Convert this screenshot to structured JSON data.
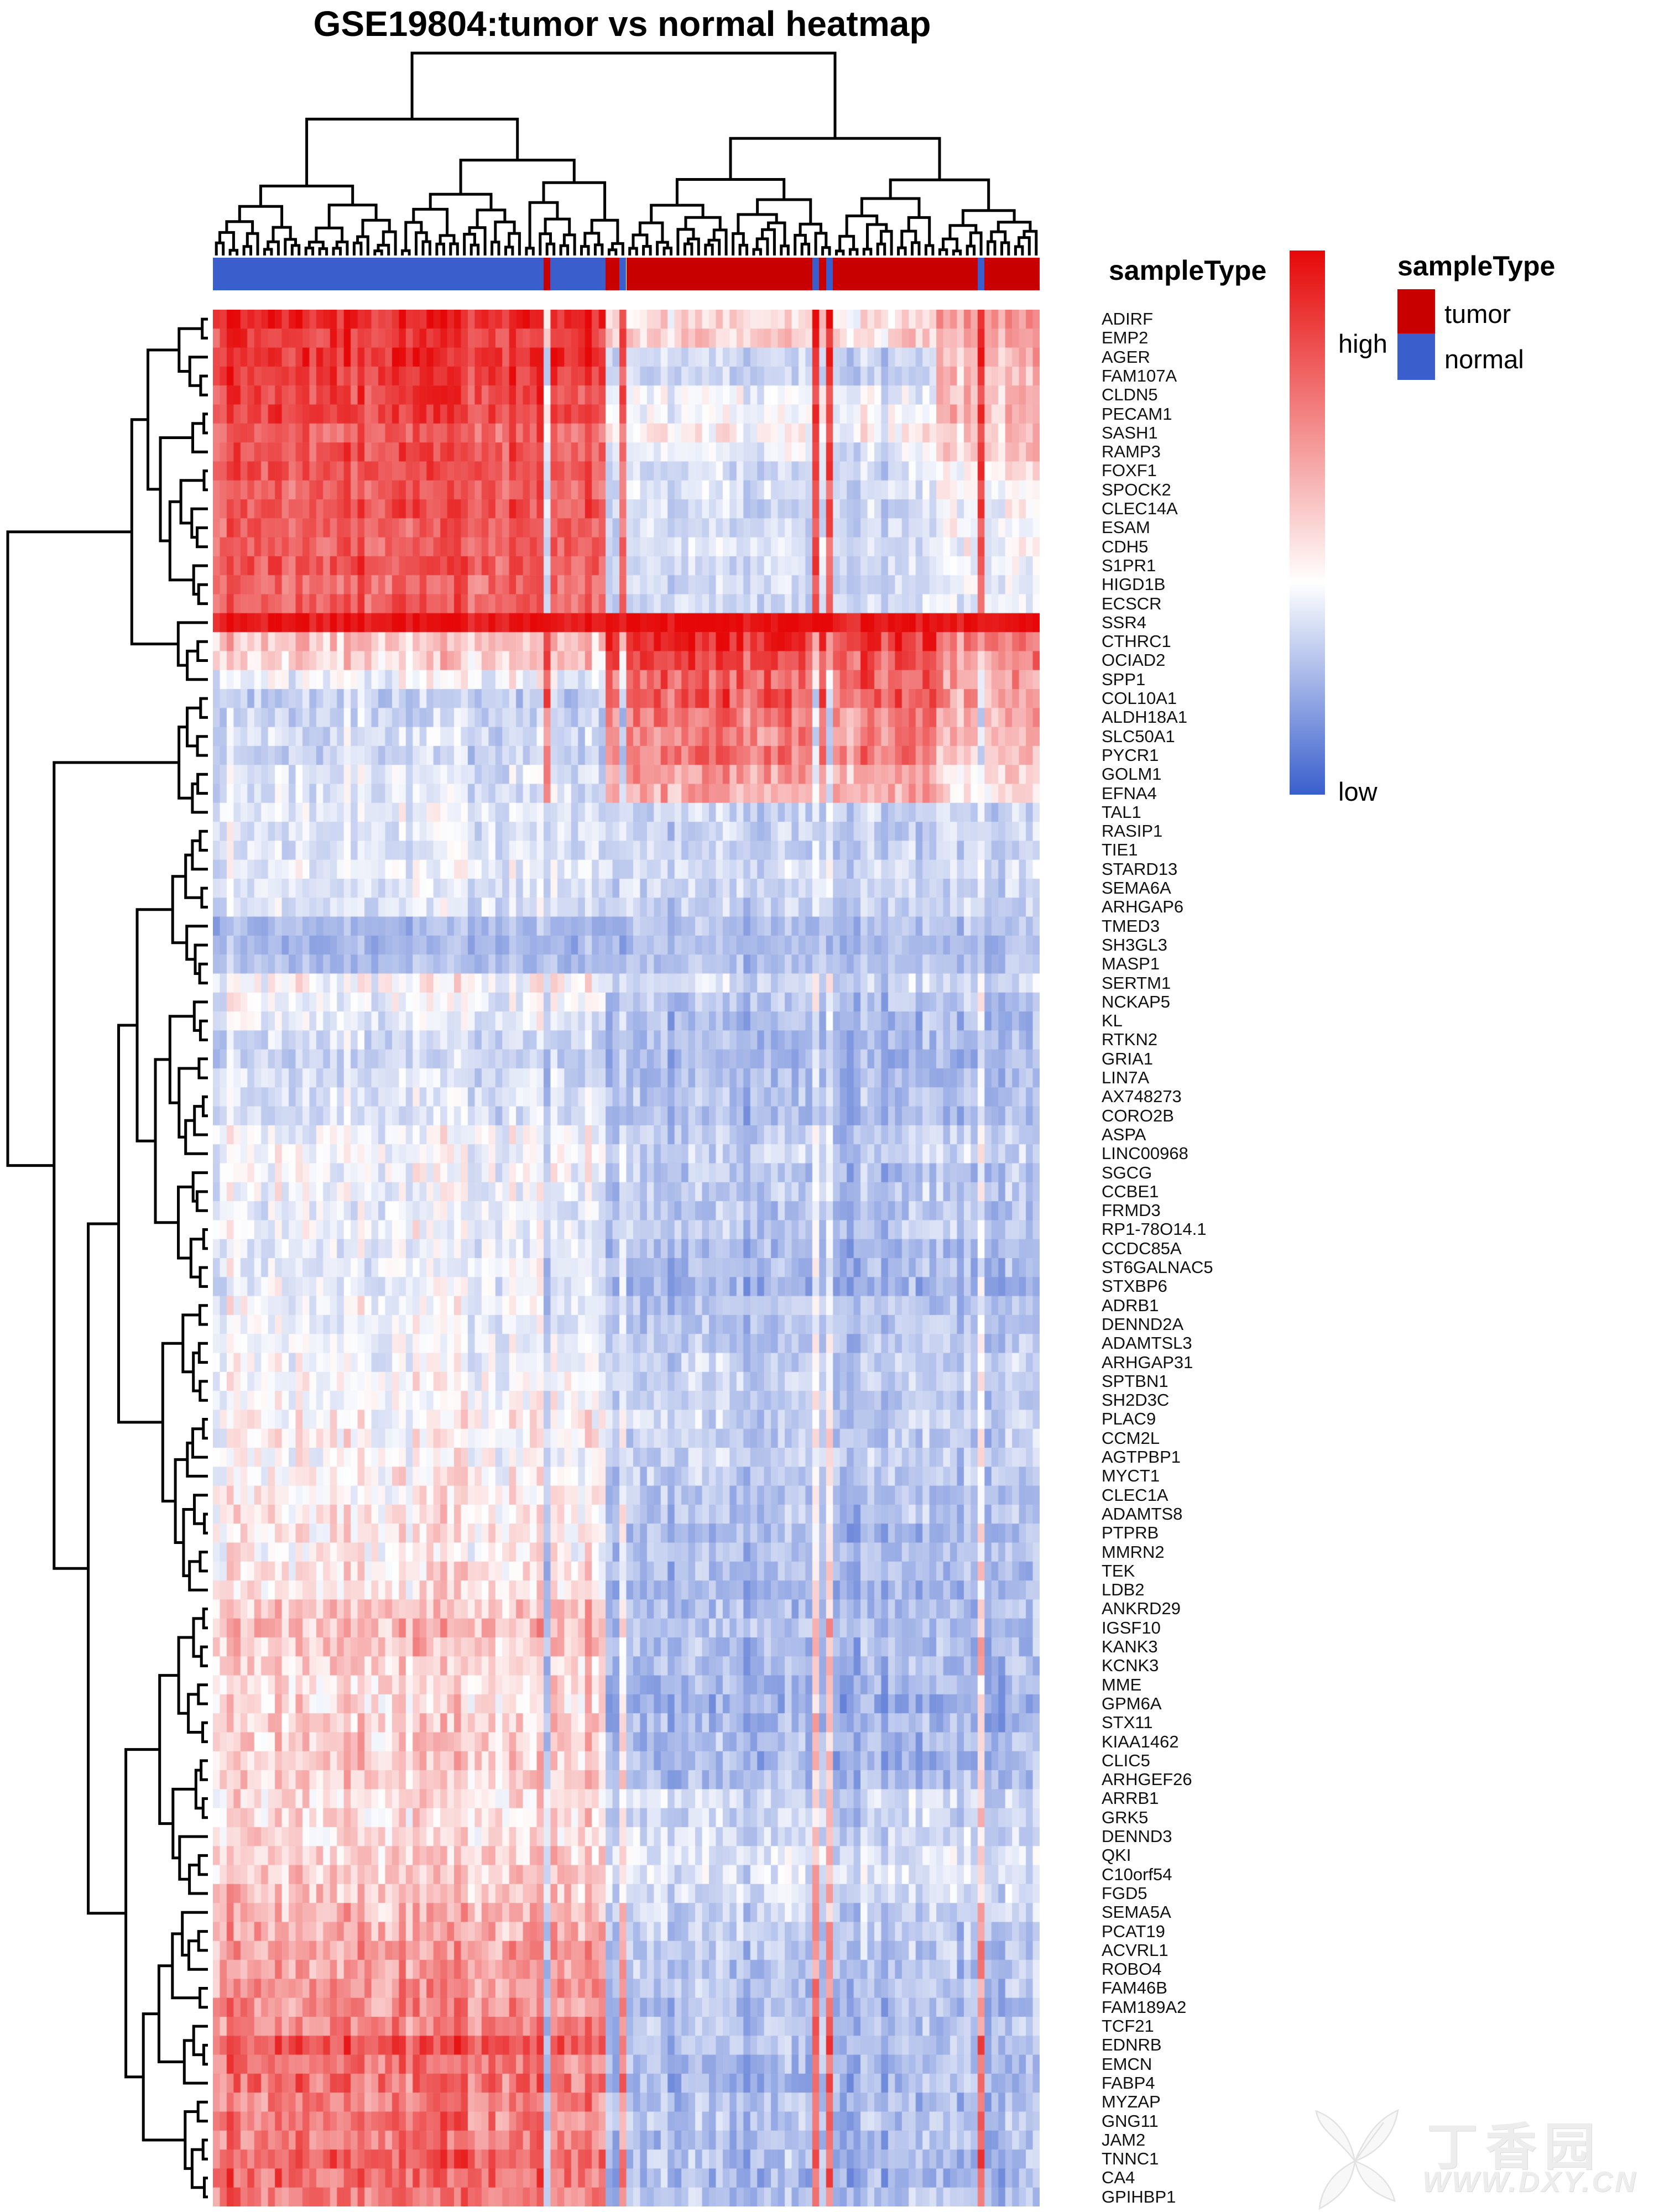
{
  "title": "GSE19804:tumor vs normal heatmap",
  "annotation_row_label": "sampleType",
  "legend": {
    "gradient_high_label": "high",
    "gradient_low_label": "low",
    "sample_type_title": "sampleType",
    "tumor_label": "tumor",
    "normal_label": "normal",
    "tumor_color": "#C80000",
    "normal_color": "#3A5FCD"
  },
  "watermark": {
    "cn": "丁香园",
    "url": "WWW.DXY.CN"
  },
  "chart_data": {
    "type": "heatmap",
    "title": "GSE19804:tumor vs normal heatmap",
    "n_samples": 120,
    "n_genes": 100,
    "grid": false,
    "colormap": {
      "low": "#3A5FCD",
      "mid": "#FFFFFF",
      "high": "#E60808",
      "vmin": -2,
      "vmax": 2
    },
    "column_annotation": {
      "name": "sampleType",
      "classes": {
        "tumor": "#C80000",
        "normal": "#3A5FCD"
      },
      "segments": [
        {
          "from": 0,
          "to": 47,
          "type": "normal"
        },
        {
          "from": 48,
          "to": 48,
          "type": "tumor"
        },
        {
          "from": 49,
          "to": 56,
          "type": "normal"
        },
        {
          "from": 57,
          "to": 58,
          "type": "tumor"
        },
        {
          "from": 59,
          "to": 59,
          "type": "normal"
        },
        {
          "from": 60,
          "to": 86,
          "type": "tumor"
        },
        {
          "from": 87,
          "to": 87,
          "type": "normal"
        },
        {
          "from": 88,
          "to": 88,
          "type": "tumor"
        },
        {
          "from": 89,
          "to": 89,
          "type": "normal"
        },
        {
          "from": 90,
          "to": 110,
          "type": "tumor"
        },
        {
          "from": 111,
          "to": 111,
          "type": "normal"
        },
        {
          "from": 112,
          "to": 119,
          "type": "tumor"
        }
      ]
    },
    "column_clusters": {
      "normal_cluster": [
        0,
        59
      ],
      "tumor_main": [
        60,
        104
      ],
      "tumor_right": [
        105,
        119
      ]
    },
    "profiles_note": "per gene: [gene, mean z-score in normal samples, mean z-score in tumor samples, mean in right tumor subcluster (null = same as tumor), noise amplitude]",
    "rows": [
      [
        "ADIRF",
        1.8,
        0.2,
        0.8,
        0.3
      ],
      [
        "EMP2",
        1.6,
        0.3,
        0.7,
        0.3
      ],
      [
        "AGER",
        1.7,
        -0.6,
        0.6,
        0.3
      ],
      [
        "FAM107A",
        1.6,
        -0.6,
        0.5,
        0.3
      ],
      [
        "CLDN5",
        1.5,
        -0.2,
        0.5,
        0.3
      ],
      [
        "PECAM1",
        1.5,
        -0.1,
        0.5,
        0.3
      ],
      [
        "SASH1",
        1.3,
        0.0,
        0.4,
        0.28
      ],
      [
        "RAMP3",
        1.4,
        -0.3,
        0.4,
        0.3
      ],
      [
        "FOXF1",
        1.4,
        -0.5,
        0.0,
        0.3
      ],
      [
        "SPOCK2",
        1.3,
        -0.4,
        0.0,
        0.28
      ],
      [
        "CLEC14A",
        1.4,
        -0.5,
        -0.1,
        0.3
      ],
      [
        "ESAM",
        1.3,
        -0.5,
        -0.1,
        0.28
      ],
      [
        "CDH5",
        1.3,
        -0.4,
        -0.1,
        0.28
      ],
      [
        "S1PR1",
        1.4,
        -0.5,
        -0.2,
        0.3
      ],
      [
        "HIGD1B",
        1.2,
        -0.5,
        -0.2,
        0.28
      ],
      [
        "ECSCR",
        1.3,
        -0.5,
        -0.2,
        0.28
      ],
      [
        "SSR4",
        1.9,
        1.9,
        1.9,
        0.12
      ],
      [
        "CTHRC1",
        0.5,
        1.6,
        1.0,
        0.35
      ],
      [
        "OCIAD2",
        0.4,
        1.4,
        0.9,
        0.35
      ],
      [
        "SPP1",
        -0.1,
        1.2,
        0.7,
        0.4
      ],
      [
        "COL10A1",
        -0.6,
        1.3,
        0.8,
        0.4
      ],
      [
        "ALDH18A1",
        -0.5,
        1.0,
        0.5,
        0.35
      ],
      [
        "SLC50A1",
        -0.4,
        0.9,
        0.5,
        0.35
      ],
      [
        "PYCR1",
        -0.5,
        1.0,
        0.4,
        0.35
      ],
      [
        "GOLM1",
        -0.3,
        0.7,
        0.3,
        0.35
      ],
      [
        "EFNA4",
        -0.3,
        0.6,
        0.2,
        0.35
      ],
      [
        "TAL1",
        -0.2,
        -0.6,
        null,
        0.35
      ],
      [
        "RASIP1",
        -0.3,
        -0.6,
        null,
        0.35
      ],
      [
        "TIE1",
        -0.3,
        -0.6,
        null,
        0.32
      ],
      [
        "STARD13",
        -0.2,
        -0.5,
        null,
        0.32
      ],
      [
        "SEMA6A",
        -0.3,
        -0.6,
        null,
        0.32
      ],
      [
        "ARHGAP6",
        -0.3,
        -0.6,
        null,
        0.32
      ],
      [
        "TMED3",
        -0.85,
        -0.8,
        null,
        0.25
      ],
      [
        "SH3GL3",
        -0.9,
        -0.85,
        null,
        0.25
      ],
      [
        "MASP1",
        -0.8,
        -0.8,
        null,
        0.25
      ],
      [
        "SERTM1",
        0.0,
        -0.5,
        null,
        0.38
      ],
      [
        "NCKAP5",
        -0.1,
        -0.8,
        null,
        0.35
      ],
      [
        "KL",
        -0.2,
        -0.9,
        null,
        0.35
      ],
      [
        "RTKN2",
        -0.4,
        -0.9,
        null,
        0.32
      ],
      [
        "GRIA1",
        -0.5,
        -1.0,
        null,
        0.32
      ],
      [
        "LIN7A",
        -0.4,
        -0.9,
        null,
        0.32
      ],
      [
        "AX748273",
        -0.3,
        -0.8,
        null,
        0.32
      ],
      [
        "CORO2B",
        -0.4,
        -0.9,
        null,
        0.32
      ],
      [
        "ASPA",
        -0.1,
        -0.7,
        null,
        0.35
      ],
      [
        "LINC00968",
        0.0,
        -0.6,
        null,
        0.38
      ],
      [
        "SGCG",
        -0.1,
        -0.8,
        null,
        0.38
      ],
      [
        "CCBE1",
        -0.1,
        -0.7,
        null,
        0.38
      ],
      [
        "FRMD3",
        -0.2,
        -0.8,
        null,
        0.35
      ],
      [
        "RP1-78O14.1",
        -0.1,
        -0.7,
        null,
        0.35
      ],
      [
        "CCDC85A",
        -0.2,
        -0.9,
        null,
        0.35
      ],
      [
        "ST6GALNAC5",
        -0.2,
        -0.9,
        null,
        0.35
      ],
      [
        "STXBP6",
        -0.2,
        -1.0,
        null,
        0.35
      ],
      [
        "ADRB1",
        -0.1,
        -0.8,
        null,
        0.35
      ],
      [
        "DENND2A",
        -0.2,
        -0.8,
        null,
        0.33
      ],
      [
        "ADAMTSL3",
        -0.1,
        -0.7,
        null,
        0.33
      ],
      [
        "ARHGAP31",
        -0.1,
        -0.6,
        null,
        0.33
      ],
      [
        "SPTBN1",
        0.0,
        -0.6,
        null,
        0.33
      ],
      [
        "SH2D3C",
        0.0,
        -0.7,
        null,
        0.33
      ],
      [
        "PLAC9",
        0.1,
        -0.6,
        null,
        0.38
      ],
      [
        "CCM2L",
        0.1,
        -0.7,
        null,
        0.38
      ],
      [
        "AGTPBP1",
        0.0,
        -0.6,
        null,
        0.35
      ],
      [
        "MYCT1",
        0.1,
        -0.7,
        null,
        0.35
      ],
      [
        "CLEC1A",
        0.1,
        -0.8,
        null,
        0.35
      ],
      [
        "ADAMTS8",
        0.2,
        -0.8,
        null,
        0.35
      ],
      [
        "PTPRB",
        0.2,
        -0.9,
        null,
        0.35
      ],
      [
        "MMRN2",
        0.1,
        -0.8,
        null,
        0.35
      ],
      [
        "TEK",
        0.2,
        -0.9,
        null,
        0.35
      ],
      [
        "LDB2",
        0.2,
        -0.9,
        null,
        0.35
      ],
      [
        "ANKRD29",
        0.5,
        -0.9,
        null,
        0.38
      ],
      [
        "IGSF10",
        0.6,
        -0.8,
        null,
        0.4
      ],
      [
        "KANK3",
        0.5,
        -0.9,
        null,
        0.38
      ],
      [
        "KCNK3",
        0.4,
        -0.9,
        null,
        0.38
      ],
      [
        "MME",
        0.3,
        -1.0,
        null,
        0.38
      ],
      [
        "GPM6A",
        0.3,
        -1.1,
        null,
        0.38
      ],
      [
        "STX11",
        0.4,
        -1.0,
        null,
        0.38
      ],
      [
        "KIAA1462",
        0.4,
        -0.9,
        null,
        0.38
      ],
      [
        "CLIC5",
        0.4,
        -1.0,
        null,
        0.38
      ],
      [
        "ARHGEF26",
        0.4,
        -0.9,
        null,
        0.38
      ],
      [
        "ARRB1",
        0.3,
        -0.5,
        null,
        0.38
      ],
      [
        "GRK5",
        0.3,
        -0.6,
        null,
        0.38
      ],
      [
        "DENND3",
        0.3,
        -0.5,
        null,
        0.38
      ],
      [
        "QKI",
        0.4,
        -0.4,
        null,
        0.38
      ],
      [
        "C10orf54",
        0.5,
        -0.4,
        null,
        0.38
      ],
      [
        "FGD5",
        0.5,
        -0.5,
        null,
        0.38
      ],
      [
        "SEMA5A",
        0.6,
        -0.6,
        null,
        0.38
      ],
      [
        "PCAT19",
        0.7,
        -0.7,
        null,
        0.4
      ],
      [
        "ACVRL1",
        0.8,
        -0.7,
        null,
        0.38
      ],
      [
        "ROBO4",
        0.8,
        -0.8,
        null,
        0.38
      ],
      [
        "FAM46B",
        0.9,
        -0.8,
        null,
        0.38
      ],
      [
        "FAM189A2",
        0.9,
        -0.9,
        null,
        0.38
      ],
      [
        "TCF21",
        1.0,
        -0.8,
        null,
        0.4
      ],
      [
        "EDNRB",
        1.4,
        -0.8,
        null,
        0.35
      ],
      [
        "EMCN",
        1.1,
        -0.9,
        null,
        0.38
      ],
      [
        "FABP4",
        1.2,
        -0.9,
        null,
        0.45
      ],
      [
        "MYZAP",
        1.0,
        -0.9,
        null,
        0.38
      ],
      [
        "GNG11",
        1.1,
        -0.8,
        null,
        0.38
      ],
      [
        "JAM2",
        1.0,
        -0.9,
        null,
        0.38
      ],
      [
        "TNNC1",
        1.3,
        -0.8,
        null,
        0.4
      ],
      [
        "CA4",
        1.2,
        -0.9,
        null,
        0.45
      ],
      [
        "GPIHBP1",
        1.1,
        -0.8,
        null,
        0.4
      ]
    ]
  }
}
